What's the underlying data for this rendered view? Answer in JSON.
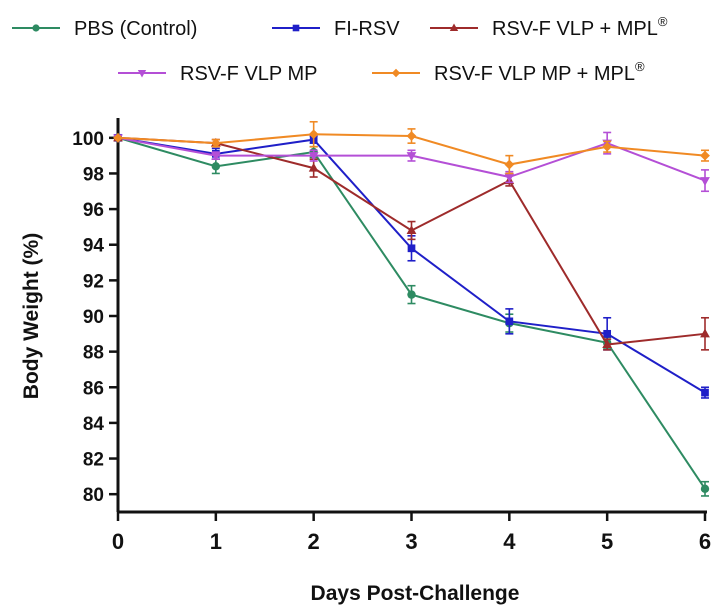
{
  "chart_data": {
    "type": "line",
    "xlabel": "Days Post-Challenge",
    "ylabel": "Body Weight (%)",
    "x": [
      0,
      1,
      2,
      3,
      4,
      5,
      6
    ],
    "xlim": [
      0,
      6
    ],
    "ylim": [
      79,
      101
    ],
    "yticks": [
      80,
      82,
      84,
      86,
      88,
      90,
      92,
      94,
      96,
      98,
      100
    ],
    "xticks": [
      0,
      1,
      2,
      3,
      4,
      5,
      6
    ],
    "grid": false,
    "legend_position": "top",
    "series": [
      {
        "name": "PBS (Control)",
        "color": "#2e8b62",
        "marker": "circle",
        "values": [
          100,
          98.4,
          99.2,
          91.2,
          89.6,
          88.5,
          80.3
        ],
        "errors": [
          0,
          0.4,
          0.3,
          0.5,
          0.5,
          0.3,
          0.4
        ]
      },
      {
        "name": "FI-RSV",
        "color": "#1f1fc8",
        "marker": "square",
        "values": [
          100,
          99.1,
          99.9,
          93.8,
          89.7,
          89.0,
          85.7
        ],
        "errors": [
          0,
          0.3,
          0.2,
          0.7,
          0.7,
          0.9,
          0.3
        ]
      },
      {
        "name": "RSV-F VLP + MPL®",
        "color": "#9e2b2b",
        "marker": "triangle-up",
        "values": [
          100,
          99.7,
          98.3,
          94.8,
          97.6,
          88.4,
          89.0
        ],
        "errors": [
          0,
          0.2,
          0.5,
          0.5,
          0.3,
          0.3,
          0.9
        ]
      },
      {
        "name": "RSV-F VLP MP",
        "color": "#b44fd6",
        "marker": "triangle-down",
        "values": [
          100,
          99.0,
          99.0,
          99.0,
          97.8,
          99.7,
          97.6
        ],
        "errors": [
          0,
          0.2,
          0.3,
          0.3,
          0.3,
          0.6,
          0.6
        ]
      },
      {
        "name": "RSV-F VLP MP + MPL®",
        "color": "#f08a24",
        "marker": "diamond",
        "values": [
          100,
          99.7,
          100.2,
          100.1,
          98.5,
          99.5,
          99.0
        ],
        "errors": [
          0,
          0.2,
          0.7,
          0.4,
          0.5,
          0.3,
          0.3
        ]
      }
    ]
  }
}
